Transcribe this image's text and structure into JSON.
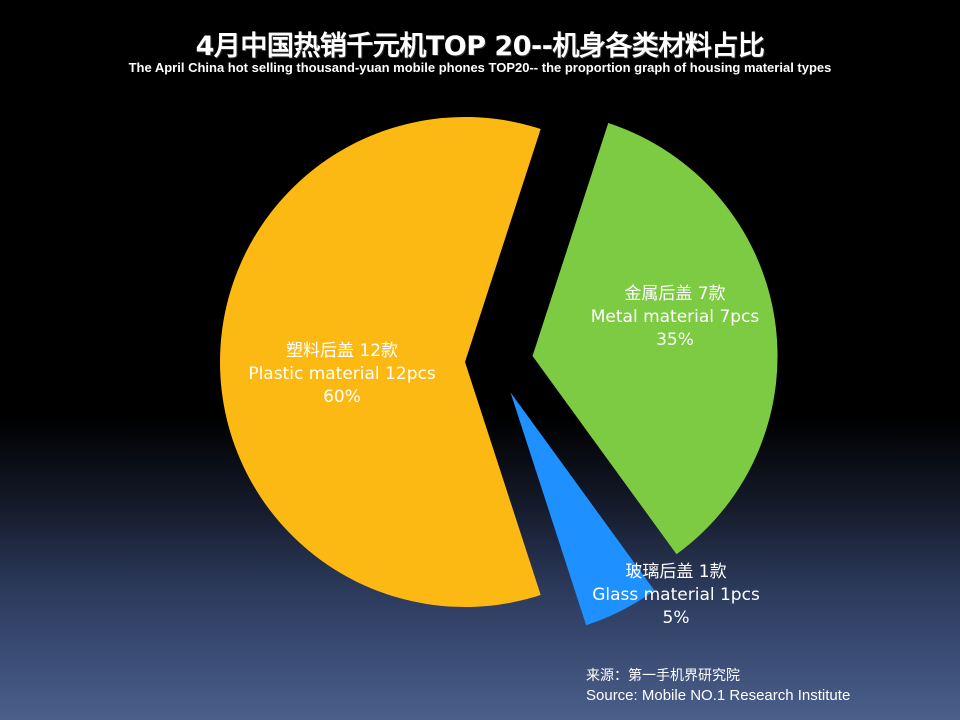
{
  "title": "4月中国热销千元机TOP 20--机身各类材料占比",
  "subtitle": "The April China hot selling thousand-yuan mobile phones TOP20-- the proportion graph of housing material types",
  "colors": {
    "plastic": "#fdb913",
    "metal": "#7dcb43",
    "glass": "#1e90ff"
  },
  "chart_data": {
    "type": "pie",
    "title": "4月中国热销千元机TOP 20--机身各类材料占比",
    "slices": [
      {
        "name_cn": "塑料后盖 12款",
        "name_en": "Plastic material 12pcs",
        "percent_label": "60%",
        "value": 60,
        "count": 12,
        "color": "#fdb913"
      },
      {
        "name_cn": "金属后盖 7款",
        "name_en": "Metal material 7pcs",
        "percent_label": "35%",
        "value": 35,
        "count": 7,
        "color": "#7dcb43"
      },
      {
        "name_cn": "玻璃后盖 1款",
        "name_en": "Glass material 1pcs",
        "percent_label": "5%",
        "value": 5,
        "count": 1,
        "color": "#1e90ff"
      }
    ],
    "exploded": true
  },
  "source": {
    "cn": "来源：第一手机界研究院",
    "en": "Source: Mobile NO.1 Research Institute"
  }
}
